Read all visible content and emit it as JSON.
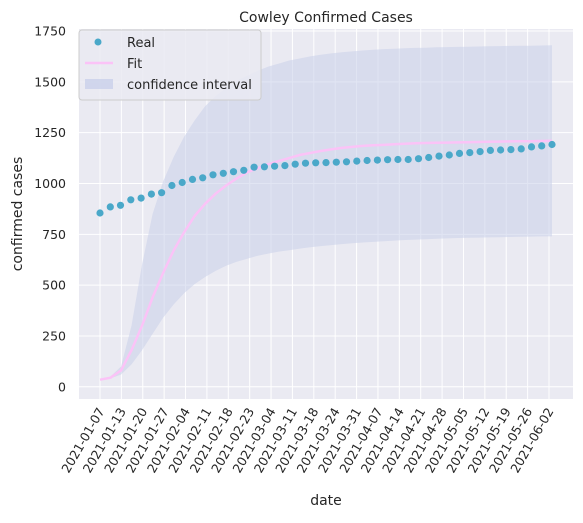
{
  "chart_data": {
    "type": "line",
    "title": "Cowley Confirmed Cases",
    "xlabel": "date",
    "ylabel": "confirmed cases",
    "ylim": [
      -60,
      1760
    ],
    "yticks": [
      0,
      250,
      500,
      750,
      1000,
      1250,
      1500,
      1750
    ],
    "xtick_labels": [
      "2021-01-07",
      "2021-01-13",
      "2021-01-20",
      "2021-01-27",
      "2021-02-04",
      "2021-02-11",
      "2021-02-18",
      "2021-02-23",
      "2021-03-04",
      "2021-03-11",
      "2021-03-18",
      "2021-03-24",
      "2021-03-31",
      "2021-04-07",
      "2021-04-14",
      "2021-04-21",
      "2021-04-28",
      "2021-05-05",
      "2021-05-12",
      "2021-05-19",
      "2021-05-26",
      "2021-06-02"
    ],
    "grid": true,
    "legend_position": "top-left",
    "colors": {
      "real": "#4aa8c9",
      "fit": "#fbc3f7",
      "confidence": "#c9d0ea",
      "plot_bg": "#eaeaf2"
    },
    "series": [
      {
        "name": "Real",
        "kind": "scatter",
        "values": [
          855,
          885,
          893,
          920,
          928,
          948,
          955,
          990,
          1005,
          1020,
          1028,
          1043,
          1050,
          1058,
          1065,
          1080,
          1082,
          1085,
          1088,
          1095,
          1100,
          1102,
          1103,
          1105,
          1107,
          1110,
          1113,
          1115,
          1117,
          1118,
          1118,
          1122,
          1128,
          1135,
          1140,
          1148,
          1152,
          1157,
          1163,
          1165,
          1167,
          1170,
          1180,
          1185,
          1192
        ]
      },
      {
        "name": "Fit",
        "kind": "line",
        "values": [
          35,
          45,
          80,
          180,
          300,
          440,
          560,
          670,
          760,
          840,
          900,
          950,
          990,
          1025,
          1055,
          1075,
          1095,
          1110,
          1125,
          1140,
          1150,
          1160,
          1168,
          1175,
          1180,
          1185,
          1188,
          1190,
          1193,
          1196,
          1198,
          1199,
          1200,
          1201,
          1202,
          1203,
          1204,
          1205,
          1206,
          1207,
          1208,
          1208,
          1209,
          1210
        ]
      },
      {
        "name": "confidence interval",
        "kind": "band",
        "lower": [
          35,
          42,
          60,
          110,
          180,
          260,
          340,
          405,
          460,
          505,
          540,
          570,
          595,
          615,
          630,
          645,
          655,
          665,
          672,
          680,
          686,
          692,
          697,
          702,
          706,
          710,
          713,
          716,
          719,
          722,
          724,
          726,
          728,
          730,
          732,
          733,
          734,
          735,
          736,
          737,
          738,
          739,
          740,
          740
        ],
        "upper": [
          35,
          50,
          100,
          300,
          600,
          850,
          1010,
          1130,
          1230,
          1310,
          1380,
          1430,
          1470,
          1505,
          1530,
          1555,
          1575,
          1590,
          1605,
          1615,
          1625,
          1633,
          1640,
          1646,
          1650,
          1654,
          1658,
          1661,
          1663,
          1665,
          1667,
          1668,
          1670,
          1671,
          1672,
          1673,
          1674,
          1675,
          1676,
          1677,
          1678,
          1678,
          1679,
          1680
        ]
      }
    ]
  }
}
